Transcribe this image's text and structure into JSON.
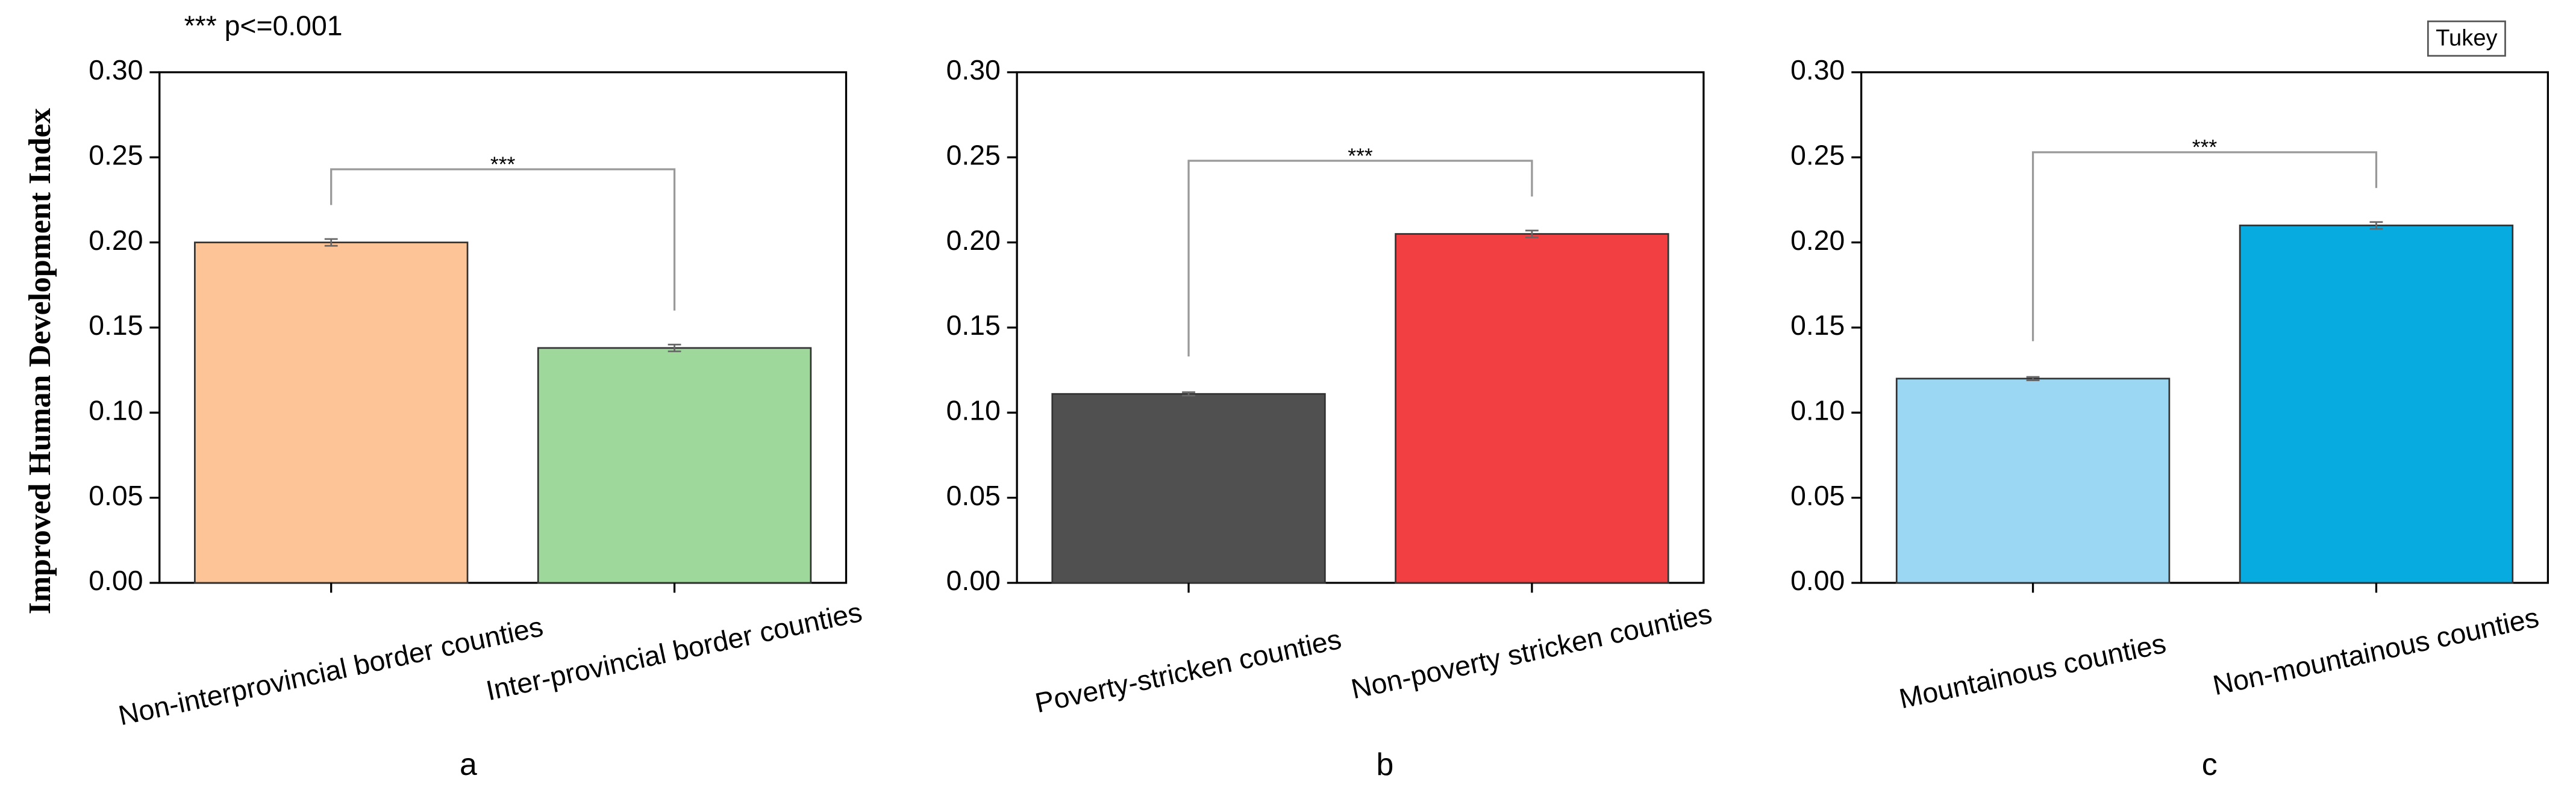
{
  "y_label": "Improved Human Development Index",
  "note": "*** p<=0.001",
  "legend_label": "Tukey",
  "chart_data": [
    {
      "type": "bar",
      "caption": "a",
      "categories": [
        "Non-interprovincial border counties",
        "Inter-provincial border counties"
      ],
      "values": [
        0.2,
        0.138
      ],
      "errors": [
        0.002,
        0.002
      ],
      "colors": [
        "#fdc597",
        "#9ed89b"
      ],
      "significance": "***",
      "ylim": [
        0,
        0.3
      ],
      "yticks": [
        {
          "value": 0,
          "label": "0.00"
        },
        0.05,
        {
          "value": 0.1,
          "label": "0.10"
        },
        0.15,
        {
          "value": 0.2,
          "label": "0.20"
        },
        0.25,
        {
          "value": 0.3,
          "label": "0.30"
        }
      ]
    },
    {
      "type": "bar",
      "caption": "b",
      "categories": [
        "Poverty-stricken counties",
        "Non-poverty stricken counties"
      ],
      "values": [
        0.111,
        0.205
      ],
      "errors": [
        0.001,
        0.002
      ],
      "colors": [
        "#505050",
        "#f23f41"
      ],
      "significance": "***",
      "ylim": [
        0,
        0.3
      ],
      "yticks": [
        {
          "value": 0,
          "label": "0.00"
        },
        0.05,
        {
          "value": 0.1,
          "label": "0.10"
        },
        0.15,
        {
          "value": 0.2,
          "label": "0.20"
        },
        0.25,
        {
          "value": 0.3,
          "label": "0.30"
        }
      ]
    },
    {
      "type": "bar",
      "caption": "c",
      "categories": [
        "Mountainous counties",
        "Non-mountainous counties"
      ],
      "values": [
        0.12,
        0.21
      ],
      "errors": [
        0.001,
        0.002
      ],
      "colors": [
        "#9bd7f2",
        "#08abe0"
      ],
      "significance": "***",
      "ylim": [
        0,
        0.3
      ],
      "yticks": [
        {
          "value": 0,
          "label": "0.00"
        },
        0.05,
        {
          "value": 0.1,
          "label": "0.10"
        },
        0.15,
        {
          "value": 0.2,
          "label": "0.20"
        },
        0.25,
        {
          "value": 0.3,
          "label": "0.30"
        }
      ]
    }
  ]
}
